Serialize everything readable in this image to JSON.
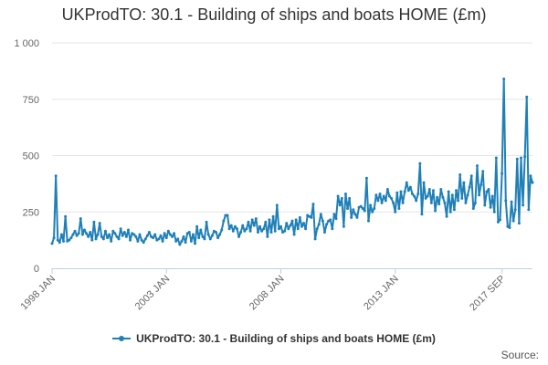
{
  "chart_data": {
    "type": "line",
    "title": "UKProdTO: 30.1 - Building of ships and boats HOME (£m)",
    "xlabel": "",
    "ylabel": "",
    "x_start": "1998 JAN",
    "x_end": "2017 SEP",
    "x_tick_labels": [
      "1998 JAN",
      "2003 JAN",
      "2008 JAN",
      "2013 JAN",
      "2017 SEP"
    ],
    "y_tick_labels": [
      "0",
      "250",
      "500",
      "750",
      "1 000"
    ],
    "ylim": [
      0,
      1000
    ],
    "grid": true,
    "legend_position": "bottom-center",
    "color": "#1f80b8",
    "series": [
      {
        "name": "UKProdTO: 30.1 - Building of ships and boats HOME (£m)",
        "values": [
          110,
          135,
          410,
          125,
          115,
          150,
          120,
          230,
          120,
          125,
          135,
          150,
          165,
          145,
          155,
          220,
          150,
          170,
          155,
          140,
          160,
          125,
          205,
          130,
          150,
          200,
          140,
          130,
          165,
          135,
          150,
          120,
          165,
          155,
          140,
          130,
          175,
          145,
          160,
          140,
          170,
          125,
          155,
          150,
          140,
          120,
          150,
          125,
          115,
          130,
          145,
          160,
          140,
          135,
          150,
          125,
          130,
          145,
          120,
          155,
          135,
          165,
          150,
          140,
          155,
          120,
          130,
          105,
          120,
          140,
          115,
          155,
          160,
          120,
          150,
          110,
          185,
          135,
          170,
          140,
          130,
          205,
          150,
          130,
          145,
          165,
          160,
          135,
          150,
          170,
          210,
          235,
          235,
          175,
          190,
          165,
          185,
          175,
          140,
          160,
          190,
          165,
          175,
          205,
          165,
          215,
          190,
          220,
          160,
          185,
          165,
          175,
          205,
          140,
          215,
          160,
          230,
          165,
          280,
          175,
          185,
          160,
          165,
          200,
          175,
          190,
          210,
          150,
          215,
          175,
          225,
          185,
          200,
          175,
          235,
          230,
          225,
          285,
          130,
          175,
          195,
          240,
          210,
          160,
          195,
          210,
          215,
          175,
          240,
          220,
          320,
          280,
          310,
          185,
          330,
          265,
          310,
          225,
          260,
          240,
          225,
          270,
          275,
          265,
          255,
          400,
          210,
          280,
          250,
          265,
          325,
          300,
          330,
          290,
          320,
          300,
          350,
          320,
          310,
          290,
          250,
          335,
          265,
          340,
          290,
          340,
          380,
          345,
          360,
          330,
          320,
          300,
          330,
          465,
          240,
          380,
          310,
          320,
          350,
          290,
          345,
          255,
          315,
          285,
          350,
          315,
          290,
          230,
          340,
          250,
          325,
          260,
          345,
          300,
          415,
          310,
          380,
          290,
          325,
          360,
          410,
          265,
          290,
          455,
          325,
          370,
          430,
          280,
          340,
          350,
          270,
          320,
          250,
          490,
          205,
          215,
          420,
          840,
          300,
          185,
          180,
          295,
          210,
          260,
          485,
          200,
          490,
          280,
          495,
          760,
          260,
          410,
          380
        ]
      }
    ]
  },
  "legend": {
    "label": "UKProdTO: 30.1 - Building of ships and boats HOME (£m)",
    "marker_icon": "line-with-dot-marker"
  },
  "footer": {
    "source_label": "Source:"
  }
}
